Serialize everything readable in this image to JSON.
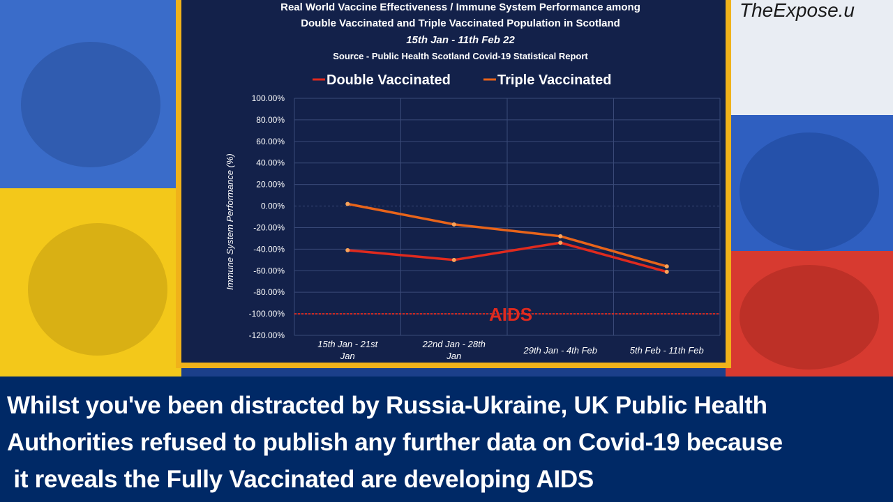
{
  "watermark": "TheExpose.u",
  "caption": {
    "lines": [
      "Whilst you've been distracted by Russia-Ukraine, UK Public Health",
      "Authorities refused to publish any further data on Covid-19 because",
      " it reveals the Fully Vaccinated are developing AIDS"
    ]
  },
  "colors": {
    "double": "#e02a1e",
    "triple": "#e8641a",
    "frame": "#f0b21a",
    "chart_bg": "#13214a",
    "caption_bg": "#002966"
  },
  "chart_data": {
    "type": "line",
    "title_lines": [
      "Real World Vaccine Effectiveness / Immune System Performance among",
      "Double Vaccinated and Triple Vaccinated Population in Scotland"
    ],
    "subtitle": "15th Jan - 11th Feb 22",
    "source": "Source - Public Health Scotland Covid-19 Statistical Report",
    "ylabel": "Immune System Performance (%)",
    "ylim": [
      -120,
      100
    ],
    "yticks": [
      "100.00%",
      "80.00%",
      "60.00%",
      "40.00%",
      "20.00%",
      "0.00%",
      "-20.00%",
      "-40.00%",
      "-60.00%",
      "-80.00%",
      "-100.00%",
      "-120.00%"
    ],
    "categories": [
      [
        "15th Jan - 21st",
        "Jan"
      ],
      [
        "22nd Jan - 28th",
        "Jan"
      ],
      [
        "29th Jan - 4th Feb"
      ],
      [
        "5th Feb - 11th Feb"
      ]
    ],
    "legend_position": "top",
    "series": [
      {
        "name": "Double Vaccinated",
        "values": [
          -41,
          -50,
          -34,
          -61
        ]
      },
      {
        "name": "Triple Vaccinated",
        "values": [
          2,
          -17,
          -28,
          -56
        ]
      }
    ],
    "reference_line": {
      "value": -100,
      "label": "AIDS"
    },
    "grid": true
  }
}
